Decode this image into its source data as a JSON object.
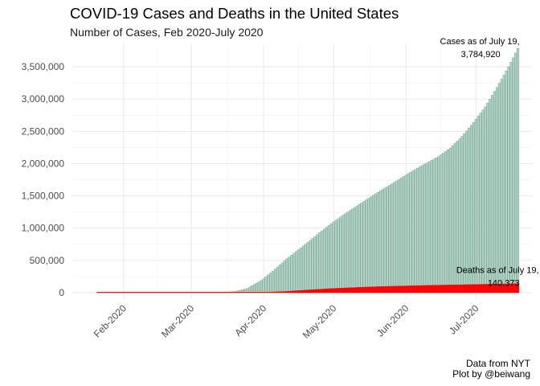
{
  "title": "COVID-19 Cases and Deaths in the United States",
  "subtitle": "Number of Cases, Feb 2020-July 2020",
  "caption_line1": "Data from NYT",
  "caption_line2": "Plot by @beiwang",
  "chart_data": {
    "type": "bar",
    "title": "COVID-19 Cases and Deaths in the United States",
    "subtitle": "Number of Cases, Feb 2020-July 2020",
    "xlabel": "",
    "ylabel": "",
    "x_start": "2020-01-21",
    "x_end": "2020-07-19",
    "xlim": [
      "2020-01-10",
      "2020-07-25"
    ],
    "ylim": [
      -100000,
      3850000
    ],
    "y_ticks": [
      0,
      500000,
      1000000,
      1500000,
      2000000,
      2500000,
      3000000,
      3500000
    ],
    "y_tick_labels": [
      "0",
      "500,000",
      "1,000,000",
      "1,500,000",
      "2,000,000",
      "2,500,000",
      "3,000,000",
      "3,500,000"
    ],
    "x_ticks": [
      "2020-02-01",
      "2020-03-01",
      "2020-04-01",
      "2020-05-01",
      "2020-06-01",
      "2020-07-01"
    ],
    "x_tick_labels": [
      "Feb-2020",
      "Mar-2020",
      "Apr-2020",
      "May-2020",
      "Jun-2020",
      "Jul-2020"
    ],
    "grid": true,
    "legend": "none",
    "series": [
      {
        "name": "Cases",
        "fill": "#b8cfc6",
        "stroke": "#5fa98c",
        "points": [
          [
            "2020-03-15",
            3500
          ],
          [
            "2020-03-20",
            19000
          ],
          [
            "2020-03-25",
            65000
          ],
          [
            "2020-03-31",
            188000
          ],
          [
            "2020-04-05",
            335000
          ],
          [
            "2020-04-10",
            495000
          ],
          [
            "2020-04-15",
            640000
          ],
          [
            "2020-04-20",
            780000
          ],
          [
            "2020-04-25",
            930000
          ],
          [
            "2020-04-30",
            1070000
          ],
          [
            "2020-05-05",
            1200000
          ],
          [
            "2020-05-10",
            1320000
          ],
          [
            "2020-05-15",
            1440000
          ],
          [
            "2020-05-20",
            1555000
          ],
          [
            "2020-05-25",
            1665000
          ],
          [
            "2020-05-31",
            1800000
          ],
          [
            "2020-06-05",
            1910000
          ],
          [
            "2020-06-10",
            2010000
          ],
          [
            "2020-06-15",
            2110000
          ],
          [
            "2020-06-20",
            2240000
          ],
          [
            "2020-06-25",
            2420000
          ],
          [
            "2020-06-30",
            2640000
          ],
          [
            "2020-07-05",
            2880000
          ],
          [
            "2020-07-10",
            3180000
          ],
          [
            "2020-07-15",
            3500000
          ],
          [
            "2020-07-19",
            3784920
          ]
        ]
      },
      {
        "name": "Deaths",
        "fill": "#ff0000",
        "stroke": "#ff0000",
        "points": [
          [
            "2020-03-15",
            60
          ],
          [
            "2020-03-25",
            1000
          ],
          [
            "2020-03-31",
            4000
          ],
          [
            "2020-04-10",
            18000
          ],
          [
            "2020-04-20",
            42000
          ],
          [
            "2020-04-30",
            64000
          ],
          [
            "2020-05-10",
            80000
          ],
          [
            "2020-05-20",
            94000
          ],
          [
            "2020-05-31",
            104000
          ],
          [
            "2020-06-10",
            113000
          ],
          [
            "2020-06-20",
            120000
          ],
          [
            "2020-06-30",
            127000
          ],
          [
            "2020-07-10",
            134000
          ],
          [
            "2020-07-19",
            140373
          ]
        ]
      }
    ],
    "annotations": [
      {
        "name": "cases-annotation",
        "line1": "Cases as of July 19,",
        "line2": "3,784,920",
        "x": "2020-07-19",
        "y": 3784920
      },
      {
        "name": "deaths-annotation",
        "line1": "Deaths as of July 19,",
        "line2": "140,373",
        "x": "2020-07-19",
        "y": 140373
      }
    ]
  }
}
